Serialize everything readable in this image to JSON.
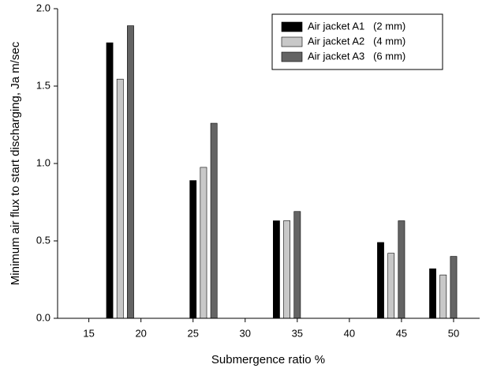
{
  "chart_data": {
    "type": "bar",
    "xlabel": "Submergence ratio %",
    "ylabel": "Minimum air flux to start discharging, Ja m/sec",
    "xlim": [
      12,
      52.5
    ],
    "xticks": [
      15,
      20,
      25,
      30,
      35,
      40,
      45,
      50
    ],
    "ylim": [
      0,
      2.0
    ],
    "yticks": [
      {
        "value": 0,
        "label": "0.0"
      },
      {
        "value": 0.5,
        "label": "0.5"
      },
      {
        "value": 1.0,
        "label": "1.0"
      },
      {
        "value": 1.5,
        "label": "1.5"
      },
      {
        "value": 2.0,
        "label": "2.0"
      }
    ],
    "legend": "upper right",
    "series": [
      {
        "name": "Air jacket A1   (2 mm)",
        "color": "#000000",
        "x": [
          17,
          25,
          33,
          43,
          48
        ],
        "values": [
          1.78,
          0.89,
          0.63,
          0.49,
          0.32
        ]
      },
      {
        "name": "Air jacket A2   (4 mm)",
        "color": "#c8c8c8",
        "x": [
          18,
          26,
          34,
          44,
          49
        ],
        "values": [
          1.545,
          0.975,
          0.63,
          0.42,
          0.28
        ]
      },
      {
        "name": "Air jacket A3   (6 mm)",
        "color": "#646464",
        "x": [
          19,
          27,
          35,
          45,
          50
        ],
        "values": [
          1.89,
          1.26,
          0.69,
          0.63,
          0.4
        ]
      }
    ]
  }
}
